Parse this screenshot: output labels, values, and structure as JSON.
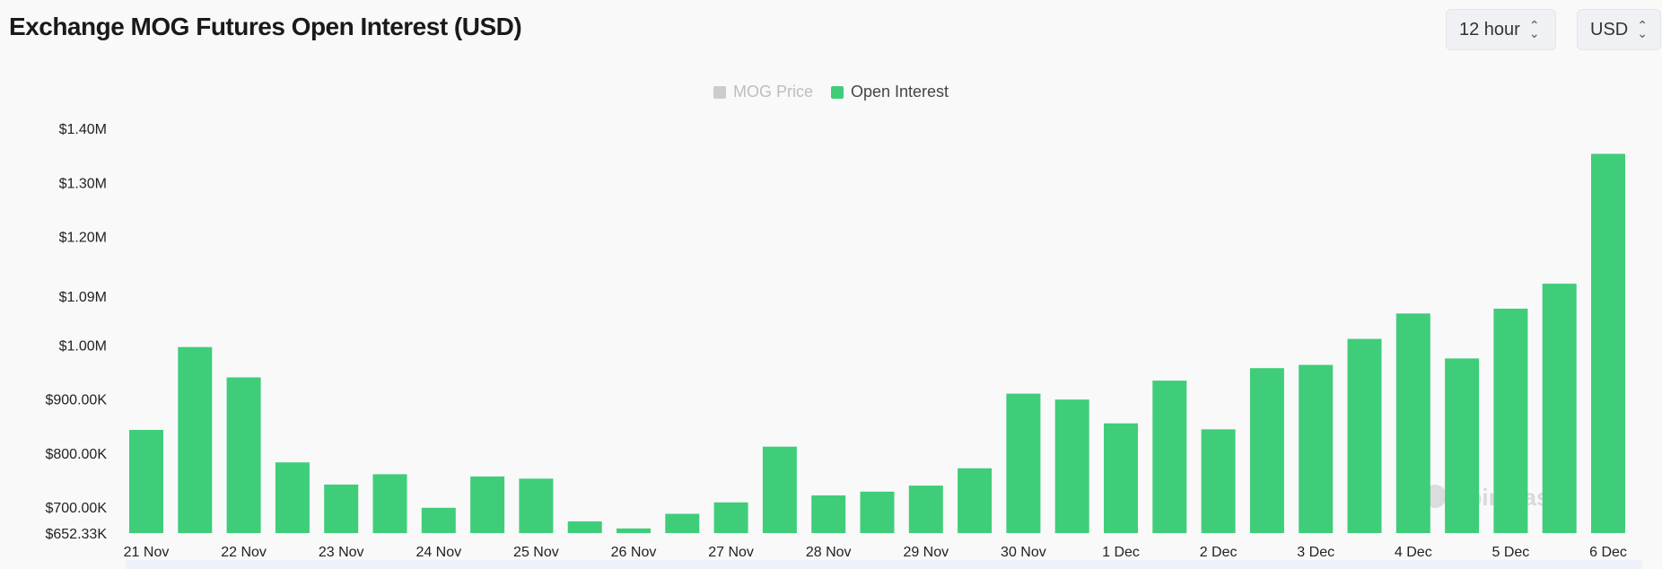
{
  "header": {
    "title": "Exchange MOG Futures Open Interest (USD)",
    "interval_label": "12 hour",
    "currency_label": "USD"
  },
  "legend": {
    "items": [
      {
        "label": "MOG Price",
        "color": "#cccccc",
        "enabled": false
      },
      {
        "label": "Open Interest",
        "color": "#3fcd7a",
        "enabled": true
      }
    ]
  },
  "watermark": "coinglass",
  "colors": {
    "bar": "#3fcd7a",
    "scrollbar": "#eef0fa"
  },
  "chart_data": {
    "type": "bar",
    "categories": [
      "21 Nov",
      "",
      "22 Nov",
      "",
      "23 Nov",
      "",
      "24 Nov",
      "",
      "25 Nov",
      "",
      "26 Nov",
      "",
      "27 Nov",
      "",
      "28 Nov",
      "",
      "29 Nov",
      "",
      "30 Nov",
      "",
      "1 Dec",
      "",
      "2 Dec",
      "",
      "3 Dec",
      "",
      "4 Dec",
      "",
      "5 Dec",
      "",
      "6 Dec"
    ],
    "x_tick_labels": [
      "21 Nov",
      "22 Nov",
      "23 Nov",
      "24 Nov",
      "25 Nov",
      "26 Nov",
      "27 Nov",
      "28 Nov",
      "29 Nov",
      "30 Nov",
      "1 Dec",
      "2 Dec",
      "3 Dec",
      "4 Dec",
      "5 Dec",
      "6 Dec"
    ],
    "series": [
      {
        "name": "Open Interest",
        "values": [
          843000,
          996000,
          940000,
          783000,
          742000,
          761000,
          699000,
          757000,
          753000,
          674000,
          661000,
          688000,
          709000,
          812000,
          722000,
          729000,
          740000,
          772000,
          910000,
          899000,
          855000,
          934000,
          844000,
          957000,
          963000,
          1011000,
          1058000,
          975000,
          1067000,
          1113000,
          1353000
        ]
      }
    ],
    "y_tick_labels": [
      "$1.40M",
      "$1.30M",
      "$1.20M",
      "$1.09M",
      "$1.00M",
      "$900.00K",
      "$800.00K",
      "$700.00K",
      "$652.33K"
    ],
    "y_tick_values": [
      1400000,
      1300000,
      1200000,
      1090000,
      1000000,
      900000,
      800000,
      700000,
      652330
    ],
    "ylim": [
      652330,
      1400000
    ],
    "grid": false,
    "legend_position": "top-center"
  }
}
